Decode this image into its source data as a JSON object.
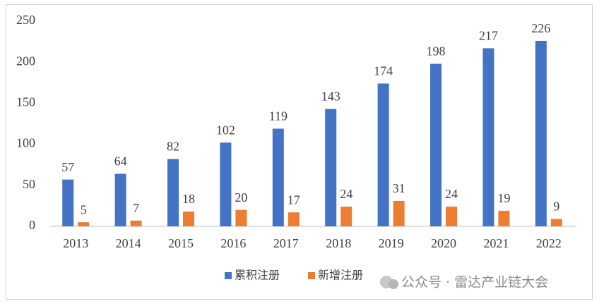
{
  "chart_data": {
    "type": "bar",
    "categories": [
      "2013",
      "2014",
      "2015",
      "2016",
      "2017",
      "2018",
      "2019",
      "2020",
      "2021",
      "2022"
    ],
    "series": [
      {
        "name": "累积注册",
        "color": "#4472c4",
        "values": [
          57,
          64,
          82,
          102,
          119,
          143,
          174,
          198,
          217,
          226
        ]
      },
      {
        "name": "新增注册",
        "color": "#ed7d31",
        "values": [
          5,
          7,
          18,
          20,
          17,
          24,
          31,
          24,
          19,
          9
        ]
      }
    ],
    "ylim": [
      0,
      250
    ],
    "yticks": [
      0,
      50,
      100,
      150,
      200,
      250
    ],
    "grid": false,
    "legend": "bottom",
    "watermark": "公众号 · 雷达产业链大会"
  }
}
